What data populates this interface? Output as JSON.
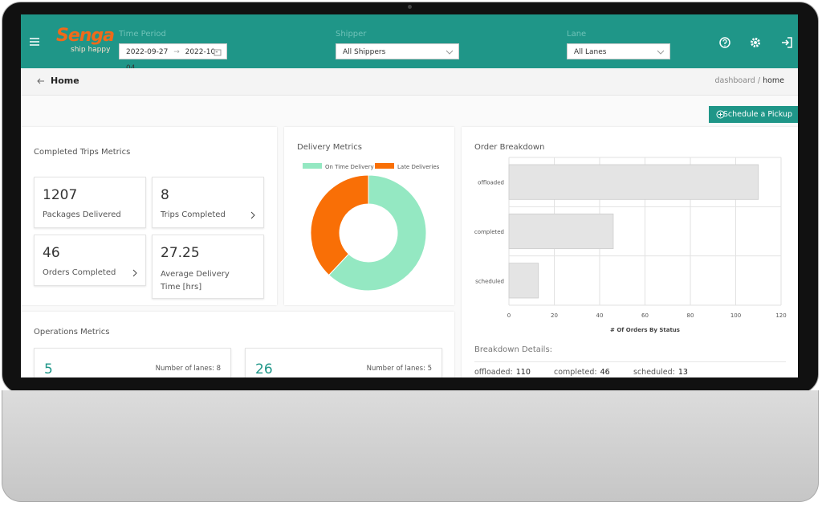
{
  "header": {
    "logo": "Senga",
    "tagline": "ship happy",
    "time_period_label": "Time Period",
    "start_date": "2022-09-27",
    "end_date": "2022-10-04",
    "shipper_label": "Shipper",
    "shipper": "All Shippers",
    "lane_label": "Lane",
    "lane": "All Lanes"
  },
  "breadcrumb": {
    "title": "Home",
    "trail": [
      "dashboard",
      "home"
    ],
    "separator": "/"
  },
  "schedule_button": "Schedule a Pickup",
  "completed_trips": {
    "title": "Completed Trips Metrics",
    "cards": [
      {
        "value": 1207,
        "label": "Packages Delivered"
      },
      {
        "value": 8,
        "label": "Trips Completed"
      },
      {
        "value": 46,
        "label": "Orders Completed"
      },
      {
        "value": 27.25,
        "label": "Average Delivery Time [hrs]"
      }
    ]
  },
  "operations": {
    "title": "Operations Metrics",
    "cards": [
      {
        "value": 5,
        "label": "Number of lanes: 8"
      },
      {
        "value": 26,
        "label": "Number of lanes: 5"
      }
    ]
  },
  "breakdown_details": {
    "title": "Breakdown Details:",
    "items": [
      {
        "label": "offloaded:",
        "value": 110
      },
      {
        "label": "completed:",
        "value": 46
      },
      {
        "label": "scheduled:",
        "value": 13
      }
    ]
  },
  "chart_data": [
    {
      "type": "doughnut",
      "title": "Delivery Metrics",
      "categories": [
        "On Time Delivery",
        "Late Deliveries"
      ],
      "values": [
        62,
        38
      ],
      "colors": [
        "#94e8c2",
        "#f96f06"
      ]
    },
    {
      "type": "bar",
      "orientation": "horizontal",
      "title": "Order Breakdown",
      "categories": [
        "offloaded",
        "completed",
        "scheduled"
      ],
      "values": [
        110,
        46,
        13
      ],
      "color": "#e4e4e4",
      "xlim": [
        0,
        120
      ],
      "xticks": [
        0,
        20,
        40,
        60,
        80,
        100,
        120
      ],
      "xlabel": "# Of Orders By Status",
      "grid": true
    }
  ]
}
